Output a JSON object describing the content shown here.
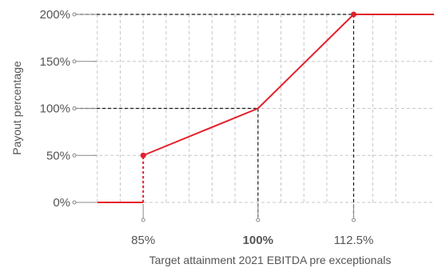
{
  "chart_data": {
    "type": "line",
    "title": "",
    "xlabel": "Target attainment 2021 EBITDA pre exceptionals",
    "ylabel": "Payout percentage",
    "xlim": [
      76,
      123
    ],
    "ylim": [
      0,
      200
    ],
    "x_ticks": [
      {
        "value": 85,
        "label": "85%",
        "bold": false
      },
      {
        "value": 100,
        "label": "100%",
        "bold": true
      },
      {
        "value": 112.5,
        "label": "112.5%",
        "bold": false
      }
    ],
    "y_ticks": [
      {
        "value": 0,
        "label": "0%"
      },
      {
        "value": 50,
        "label": "50%"
      },
      {
        "value": 100,
        "label": "100%"
      },
      {
        "value": 150,
        "label": "150%"
      },
      {
        "value": 200,
        "label": "200%"
      }
    ],
    "grid_x": [
      79,
      82,
      85,
      88,
      91,
      94,
      97,
      100,
      103,
      106,
      109,
      112.5,
      115,
      118
    ],
    "grid_y": [
      0,
      50,
      100,
      150,
      200
    ],
    "series": [
      {
        "color": "#e3202a",
        "points": [
          [
            79,
            0
          ],
          [
            85,
            0
          ],
          [
            85,
            50
          ],
          [
            100,
            100
          ],
          [
            112.5,
            200
          ],
          [
            123,
            200
          ]
        ],
        "dashed_segment_index": 1,
        "markers": [
          [
            85,
            50
          ],
          [
            112.5,
            200
          ]
        ]
      }
    ],
    "reference_lines": [
      {
        "x": 100,
        "y": 100
      },
      {
        "x": 112.5,
        "y": 200
      }
    ],
    "grid": true,
    "legend": "none"
  }
}
